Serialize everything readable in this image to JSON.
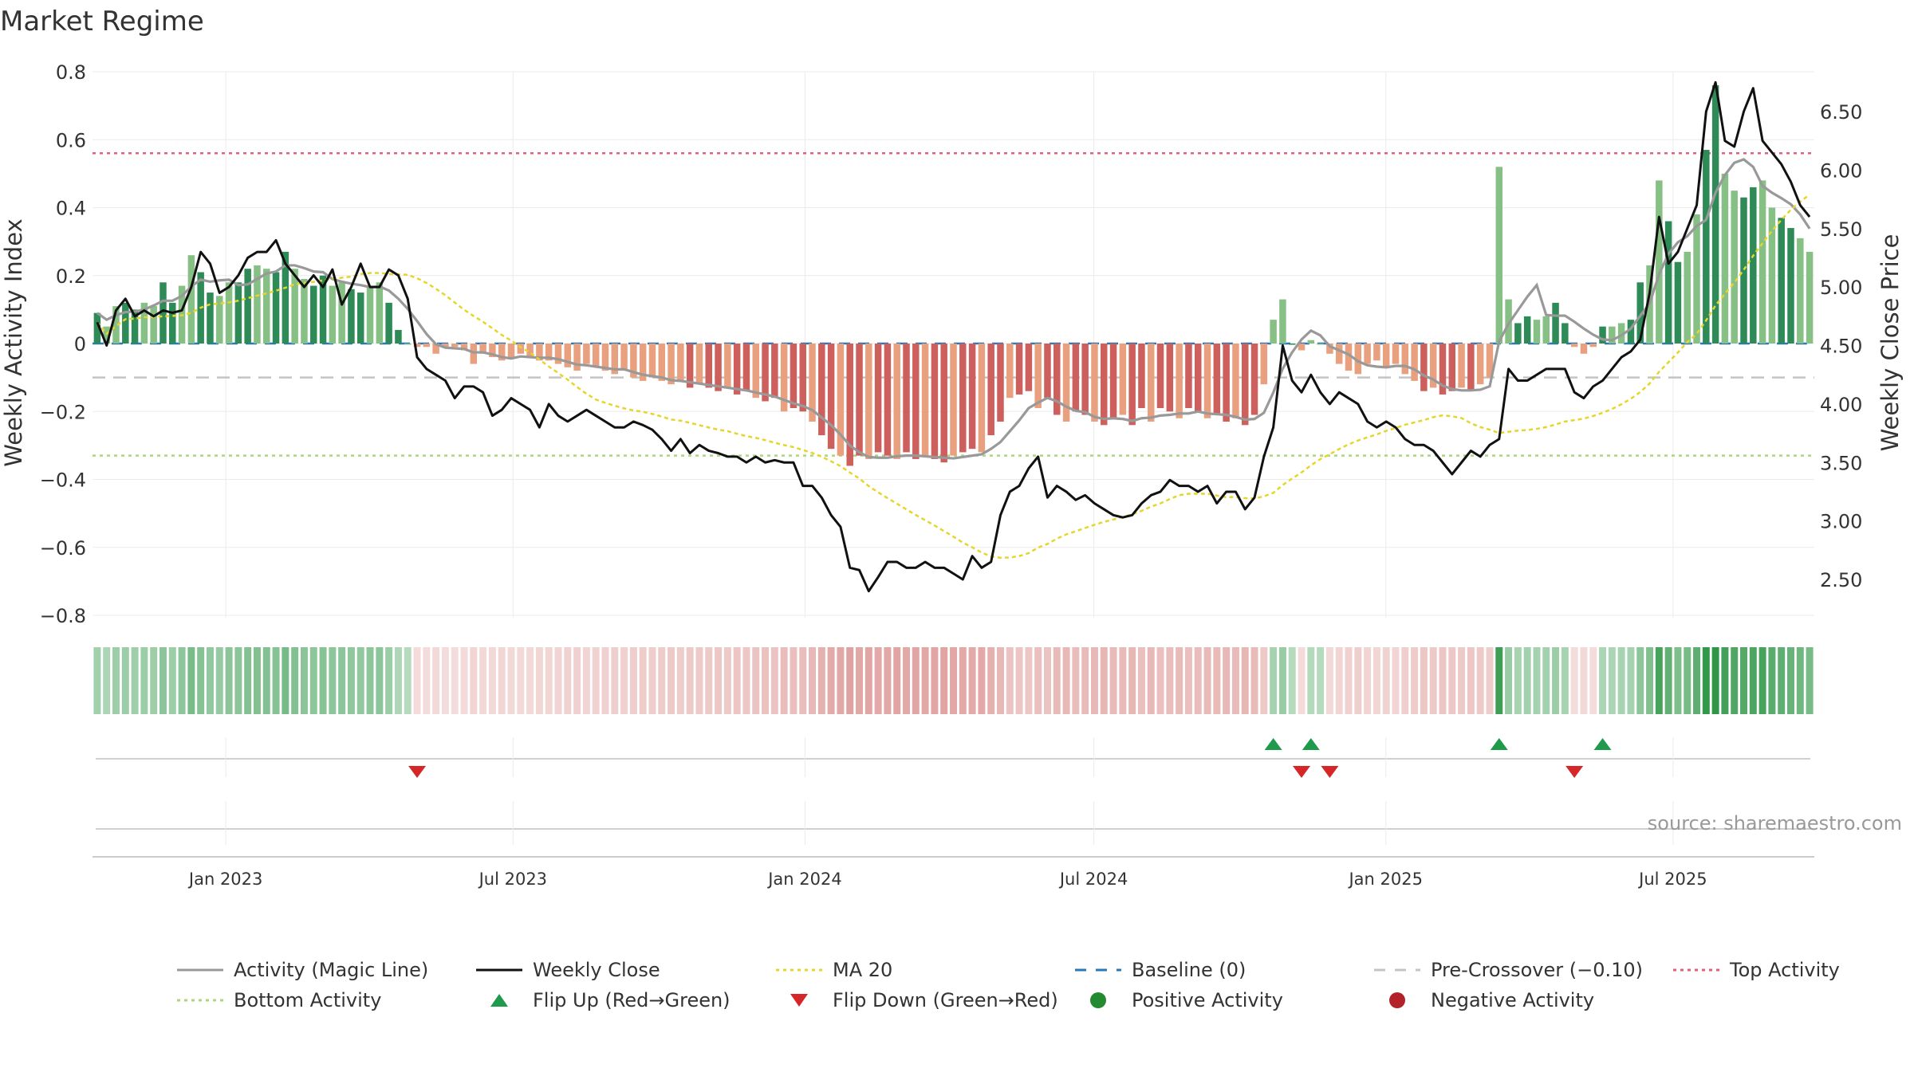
{
  "title": "Market Regime",
  "source_note": "source: sharemaestro.com",
  "chart_data": {
    "type": "bar",
    "title": "Market Regime",
    "ylabel_left": "Weekly Activity Index",
    "ylabel_right": "Weekly Close Price",
    "ylim_left": [
      -0.8,
      0.8
    ],
    "yticks_left": [
      0.8,
      0.6,
      0.4,
      0.2,
      0,
      -0.2,
      -0.4,
      -0.6,
      -0.8
    ],
    "ytick_labels_left": [
      "0.8",
      "0.6",
      "0.4",
      "0.2",
      "0",
      "−0.2",
      "−0.4",
      "−0.6",
      "−0.8"
    ],
    "ylim_right": [
      2.2,
      6.8
    ],
    "yticks_right": [
      6.5,
      6.0,
      5.5,
      5.0,
      4.5,
      4.0,
      3.5,
      3.0,
      2.5
    ],
    "ytick_labels_right": [
      "6.50",
      "6.00",
      "5.50",
      "5.00",
      "4.50",
      "4.00",
      "3.50",
      "3.00",
      "2.50"
    ],
    "x_start": "2022-10-09",
    "x_end": "2025-09-28",
    "x_ticks": [
      "2023-01-01",
      "2023-07-01",
      "2024-01-01",
      "2024-07-01",
      "2025-01-01",
      "2025-07-01"
    ],
    "x_tick_labels": [
      "Jan 2023",
      "Jul 2023",
      "Jan 2024",
      "Jul 2024",
      "Jan 2025",
      "Jul 2025"
    ],
    "reference_lines": {
      "baseline": 0,
      "pre_crossover": -0.1,
      "top_activity": 0.56,
      "bottom_activity": -0.33
    },
    "activity": [
      0.09,
      0.05,
      0.11,
      0.12,
      0.1,
      0.12,
      0.11,
      0.18,
      0.12,
      0.17,
      0.26,
      0.21,
      0.15,
      0.14,
      0.18,
      0.18,
      0.22,
      0.23,
      0.22,
      0.21,
      0.27,
      0.22,
      0.19,
      0.17,
      0.2,
      0.17,
      0.18,
      0.16,
      0.15,
      0.17,
      0.18,
      0.12,
      0.04,
      0,
      -0.01,
      -0.01,
      -0.03,
      -0.01,
      -0.01,
      -0.02,
      -0.06,
      -0.03,
      -0.04,
      -0.05,
      -0.04,
      -0.03,
      -0.04,
      -0.05,
      -0.05,
      -0.06,
      -0.07,
      -0.08,
      -0.06,
      -0.07,
      -0.08,
      -0.09,
      -0.08,
      -0.1,
      -0.11,
      -0.1,
      -0.11,
      -0.12,
      -0.11,
      -0.13,
      -0.12,
      -0.13,
      -0.14,
      -0.13,
      -0.15,
      -0.14,
      -0.16,
      -0.17,
      -0.16,
      -0.2,
      -0.19,
      -0.2,
      -0.23,
      -0.27,
      -0.31,
      -0.33,
      -0.36,
      -0.33,
      -0.34,
      -0.32,
      -0.33,
      -0.34,
      -0.32,
      -0.34,
      -0.33,
      -0.34,
      -0.35,
      -0.33,
      -0.32,
      -0.31,
      -0.32,
      -0.27,
      -0.23,
      -0.16,
      -0.15,
      -0.14,
      -0.19,
      -0.16,
      -0.21,
      -0.23,
      -0.2,
      -0.21,
      -0.23,
      -0.24,
      -0.22,
      -0.21,
      -0.24,
      -0.19,
      -0.23,
      -0.19,
      -0.2,
      -0.22,
      -0.19,
      -0.2,
      -0.22,
      -0.21,
      -0.23,
      -0.22,
      -0.24,
      -0.21,
      -0.12,
      0.07,
      0.13,
      0,
      -0.02,
      0.01,
      0,
      -0.03,
      -0.06,
      -0.08,
      -0.09,
      -0.06,
      -0.05,
      -0.07,
      -0.06,
      -0.09,
      -0.11,
      -0.14,
      -0.13,
      -0.15,
      -0.14,
      -0.13,
      -0.14,
      -0.12,
      -0.1,
      0.52,
      0.13,
      0.06,
      0.08,
      0.07,
      0.08,
      0.12,
      0.06,
      -0.01,
      -0.03,
      -0.01,
      0.05,
      0.05,
      0.06,
      0.07,
      0.18,
      0.23,
      0.48,
      0.36,
      0.24,
      0.27,
      0.38,
      0.57,
      0.76,
      0.5,
      0.45,
      0.43,
      0.46,
      0.48,
      0.4,
      0.37,
      0.34,
      0.31,
      0.27
    ],
    "weekly_close": [
      4.7,
      4.5,
      4.8,
      4.9,
      4.75,
      4.8,
      4.75,
      4.8,
      4.78,
      4.8,
      5.0,
      5.3,
      5.2,
      4.95,
      5.0,
      5.1,
      5.25,
      5.3,
      5.3,
      5.4,
      5.2,
      5.1,
      5.0,
      5.1,
      5.0,
      5.15,
      4.85,
      5.0,
      5.2,
      5.0,
      5.0,
      5.15,
      5.1,
      4.9,
      4.4,
      4.3,
      4.25,
      4.2,
      4.05,
      4.15,
      4.15,
      4.1,
      3.9,
      3.95,
      4.05,
      4.0,
      3.95,
      3.8,
      4.0,
      3.9,
      3.85,
      3.9,
      3.95,
      3.9,
      3.85,
      3.8,
      3.8,
      3.85,
      3.82,
      3.78,
      3.7,
      3.6,
      3.7,
      3.58,
      3.65,
      3.6,
      3.58,
      3.55,
      3.55,
      3.5,
      3.55,
      3.5,
      3.52,
      3.5,
      3.5,
      3.3,
      3.3,
      3.2,
      3.05,
      2.95,
      2.6,
      2.58,
      2.4,
      2.52,
      2.65,
      2.65,
      2.6,
      2.6,
      2.65,
      2.6,
      2.6,
      2.55,
      2.5,
      2.7,
      2.6,
      2.65,
      3.05,
      3.25,
      3.3,
      3.45,
      3.55,
      3.2,
      3.3,
      3.25,
      3.18,
      3.22,
      3.15,
      3.1,
      3.05,
      3.03,
      3.05,
      3.15,
      3.22,
      3.25,
      3.35,
      3.3,
      3.3,
      3.25,
      3.3,
      3.15,
      3.25,
      3.25,
      3.1,
      3.2,
      3.55,
      3.8,
      4.5,
      4.2,
      4.1,
      4.25,
      4.1,
      4.0,
      4.1,
      4.05,
      4.0,
      3.85,
      3.8,
      3.85,
      3.8,
      3.7,
      3.65,
      3.65,
      3.6,
      3.5,
      3.4,
      3.5,
      3.6,
      3.55,
      3.65,
      3.7,
      4.3,
      4.2,
      4.2,
      4.25,
      4.3,
      4.3,
      4.3,
      4.1,
      4.05,
      4.15,
      4.2,
      4.3,
      4.4,
      4.45,
      4.55,
      4.95,
      5.6,
      5.2,
      5.3,
      5.5,
      5.7,
      6.5,
      6.75,
      6.25,
      6.2,
      6.5,
      6.7,
      6.25,
      6.15,
      6.05,
      5.9,
      5.7,
      5.6
    ],
    "legend": [
      {
        "key": "magic",
        "label": "Activity (Magic Line)",
        "marker": "line",
        "color": "#999999"
      },
      {
        "key": "close",
        "label": "Weekly Close",
        "marker": "line",
        "color": "#111111"
      },
      {
        "key": "ma20",
        "label": "MA 20",
        "marker": "dotted",
        "color": "#e6d52a"
      },
      {
        "key": "baseline",
        "label": "Baseline (0)",
        "marker": "dashed",
        "color": "#2a78b5"
      },
      {
        "key": "precross",
        "label": "Pre-Crossover (−0.10)",
        "marker": "dashed",
        "color": "#c4c4c4"
      },
      {
        "key": "top",
        "label": "Top Activity",
        "marker": "dotted",
        "color": "#e0607a"
      },
      {
        "key": "bottom",
        "label": "Bottom Activity",
        "marker": "dotted",
        "color": "#a8d87a"
      },
      {
        "key": "flipup",
        "label": "Flip Up (Red→Green)",
        "marker": "triangle-up",
        "color": "#1e9a4a"
      },
      {
        "key": "flipdown",
        "label": "Flip Down (Green→Red)",
        "marker": "triangle-down",
        "color": "#d62728"
      },
      {
        "key": "pos",
        "label": "Positive Activity",
        "marker": "circle",
        "color": "#228b30"
      },
      {
        "key": "neg",
        "label": "Negative Activity",
        "marker": "circle",
        "color": "#b22228"
      }
    ],
    "legend_position": "bottom",
    "grid": true
  }
}
